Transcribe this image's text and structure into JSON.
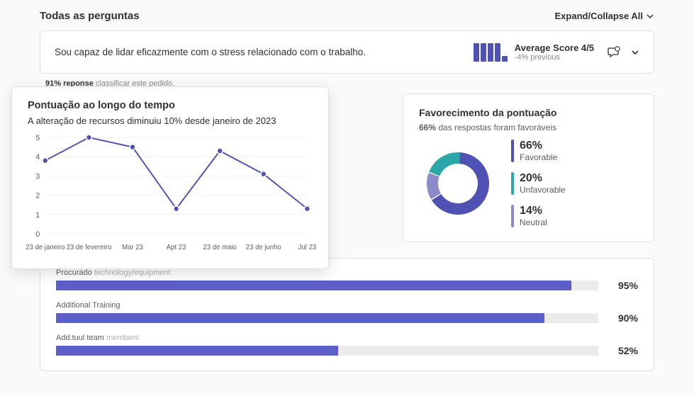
{
  "header": {
    "title": "Todas as perguntas",
    "expand_label": "Expand/Collapse All"
  },
  "question": {
    "text": "Sou capaz de lidar eficazmente com o stress relacionado com o trabalho.",
    "avg_label": "Average Score 4/5",
    "avg_sub": "-4% previous",
    "bar_color": "#4f52b2",
    "bar_heights": [
      26,
      26,
      26,
      26,
      8
    ]
  },
  "response_line": {
    "pct": "91% reponse",
    "rest": " classificar este pedido."
  },
  "score_over_time": {
    "title": "Pontuação ao longo do tempo",
    "subtitle": "A alteração de recursos diminuiu 10% desde janeiro de 2023",
    "type": "line",
    "y_ticks": [
      0,
      1,
      2,
      3,
      4,
      5
    ],
    "x_labels": [
      "23 de janeiro",
      "23 de fevereiro",
      "Mar 23",
      "Apt 23",
      "23 de maio",
      "23 de junho",
      "Jul 23"
    ],
    "values": [
      3.8,
      5.0,
      4.5,
      1.3,
      4.3,
      3.1,
      1.3
    ],
    "line_color": "#4f52b2",
    "marker_color": "#4f52b2",
    "grid_color": "#f0f0f0",
    "axis_text_color": "#605e5c"
  },
  "favorability": {
    "title": "Favorecimento da pontuação",
    "sub_pct": "66%",
    "sub_rest": " das respostas foram favoráveis",
    "type": "donut",
    "segments": [
      {
        "label": "Favorable",
        "pct": 66,
        "display": "66%",
        "color": "#4f52b2"
      },
      {
        "label": "Neutral",
        "pct": 14,
        "display": "14%",
        "color": "#8b8cc7"
      },
      {
        "label": "Unfavorable",
        "pct": 20,
        "display": "20%",
        "color": "#2aa8a8"
      }
    ],
    "ring_bg": "#f3f2f1"
  },
  "hbars": {
    "type": "bar",
    "track_color": "#edebe9",
    "rows": [
      {
        "label_a": "Procurado",
        "label_b": "technology/equipment",
        "pct": 95,
        "display": "95%",
        "color": "#5b5fc7"
      },
      {
        "label_a": "Additional Training",
        "label_b": "",
        "pct": 90,
        "display": "90%",
        "color": "#5b5fc7"
      },
      {
        "label_a": "Add.tuul team",
        "label_b": "members",
        "pct": 52,
        "display": "52%",
        "color": "#5b5fc7"
      }
    ]
  }
}
